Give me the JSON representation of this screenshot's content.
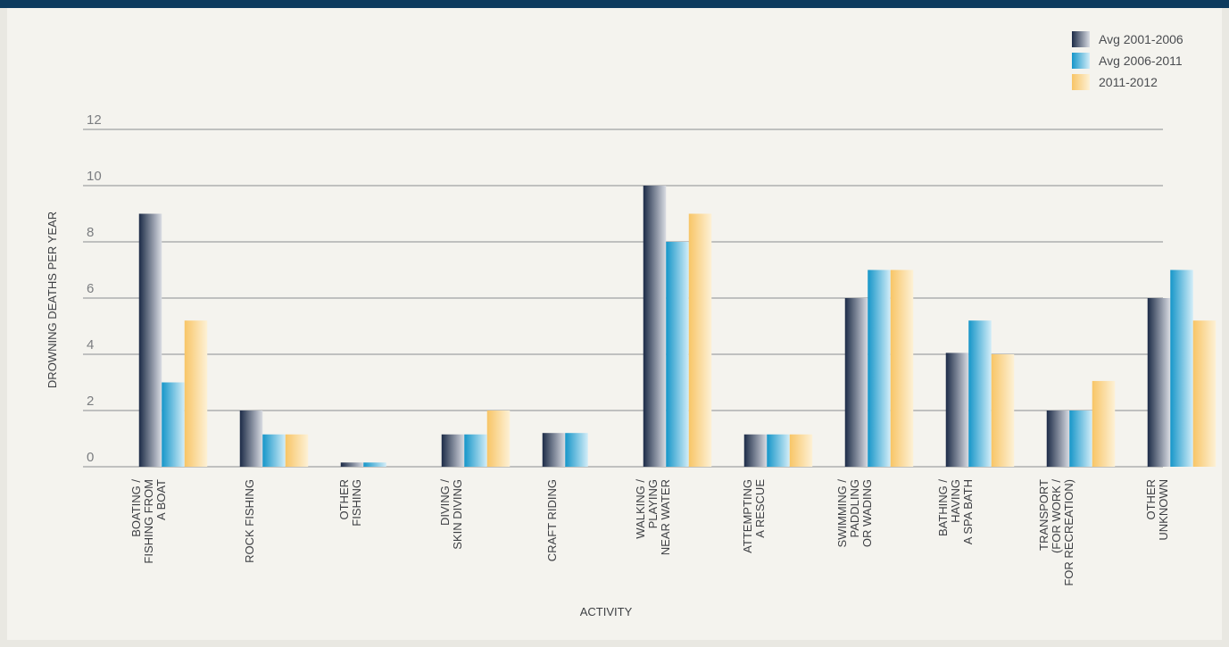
{
  "colors": {
    "top_bar": "#0d3b5e",
    "series": [
      {
        "dark": "#1c2b47",
        "light": "#d9dce3"
      },
      {
        "dark": "#1696c9",
        "light": "#d2edf8"
      },
      {
        "dark": "#f8c566",
        "light": "#fdf1d6"
      }
    ],
    "grid": "#8a8c90"
  },
  "chart_data": {
    "type": "bar",
    "title": "",
    "xlabel": "ACTIVITY",
    "ylabel": "DROWNING DEATHS PER YEAR",
    "ylim": [
      0,
      12
    ],
    "yticks": [
      "0",
      "2",
      "4",
      "6",
      "8",
      "10",
      "12"
    ],
    "grid": true,
    "legend_position": "top-right",
    "categories": [
      [
        "BOATING /",
        "FISHING FROM",
        "A BOAT"
      ],
      [
        "ROCK FISHING"
      ],
      [
        "OTHER",
        "FISHING"
      ],
      [
        "DIVING /",
        "SKIN DIVING"
      ],
      [
        "CRAFT RIDING"
      ],
      [
        "WALKING /",
        "PLAYING",
        "NEAR WATER"
      ],
      [
        "ATTEMPTING",
        "A RESCUE"
      ],
      [
        "SWIMMING /",
        "PADDLING",
        "OR WADING"
      ],
      [
        "BATHING /",
        "HAVING",
        "A SPA BATH"
      ],
      [
        "TRANSPORT",
        "(FOR WORK /",
        "FOR RECREATION)"
      ],
      [
        "OTHER",
        "UNKNOWN"
      ]
    ],
    "series": [
      {
        "name": "Avg 2001-2006",
        "values": [
          9,
          2,
          0.15,
          1.15,
          1.2,
          10,
          1.15,
          6,
          4.05,
          2,
          6
        ]
      },
      {
        "name": "Avg 2006-2011",
        "values": [
          3,
          1.15,
          0.15,
          1.15,
          1.2,
          8,
          1.15,
          7,
          5.2,
          2,
          7
        ]
      },
      {
        "name": "2011-2012",
        "values": [
          5.2,
          1.15,
          null,
          2,
          null,
          9,
          1.15,
          7,
          4,
          3.05,
          5.2
        ]
      }
    ]
  }
}
